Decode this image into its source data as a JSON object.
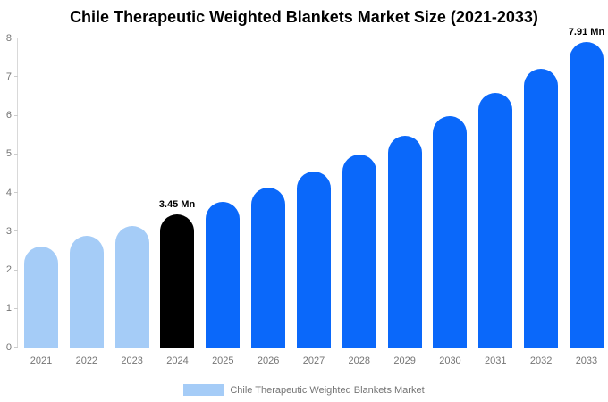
{
  "chart_data": {
    "type": "bar",
    "title": "Chile Therapeutic Weighted Blankets Market Size (2021-2033)",
    "categories": [
      "2021",
      "2022",
      "2023",
      "2024",
      "2025",
      "2026",
      "2027",
      "2028",
      "2029",
      "2030",
      "2031",
      "2032",
      "2033"
    ],
    "values": [
      2.62,
      2.88,
      3.15,
      3.45,
      3.78,
      4.15,
      4.55,
      4.99,
      5.47,
      6.0,
      6.58,
      7.21,
      7.91
    ],
    "unit": "Mn",
    "bar_colors": [
      "#A5CCF7",
      "#A5CCF7",
      "#A5CCF7",
      "#000000",
      "#0A68FA",
      "#0A68FA",
      "#0A68FA",
      "#0A68FA",
      "#0A68FA",
      "#0A68FA",
      "#0A68FA",
      "#0A68FA",
      "#0A68FA"
    ],
    "annotations": [
      {
        "category": "2024",
        "text": "3.45 Mn"
      },
      {
        "category": "2033",
        "text": "7.91 Mn"
      }
    ],
    "xlabel": "",
    "ylabel": "",
    "ylim": [
      0,
      8
    ],
    "yticks": [
      0,
      1,
      2,
      3,
      4,
      5,
      6,
      7,
      8
    ],
    "grid": false,
    "legend_position": "bottom",
    "legend": [
      {
        "label": "Chile Therapeutic Weighted Blankets Market",
        "color": "#A5CCF7"
      }
    ],
    "colors": {
      "historical_bar": "#A5CCF7",
      "base_year_bar": "#000000",
      "forecast_bar": "#0A68FA",
      "axis_line": "#d9d9d9",
      "tick_text": "#757575",
      "title_text": "#000000"
    }
  }
}
